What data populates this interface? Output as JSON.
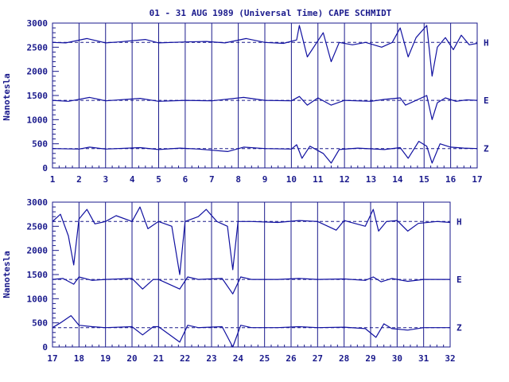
{
  "chart_data": {
    "type": "line",
    "title": "01 - 31 AUG 1989 (Universal Time) CAPE SCHMIDT",
    "ylabel": "Nanotesla",
    "colors": {
      "trace": "#1010a0",
      "frame": "#1a1a8c",
      "reference": "#1a1a8c"
    },
    "grid": "vertical day lines",
    "panels": [
      {
        "xlim": [
          1,
          17
        ],
        "x_ticks": [
          "1",
          "2",
          "3",
          "4",
          "5",
          "6",
          "7",
          "8",
          "9",
          "10",
          "11",
          "12",
          "13",
          "14",
          "15",
          "16",
          "17"
        ],
        "ylim": [
          0,
          3000
        ],
        "y_ticks": [
          "0",
          "500",
          "1000",
          "1500",
          "2000",
          "2500",
          "3000"
        ],
        "series": [
          {
            "name": "H",
            "baseline": 2600,
            "points": [
              [
                1,
                2600
              ],
              [
                1.5,
                2590
              ],
              [
                2.3,
                2680
              ],
              [
                3,
                2590
              ],
              [
                3.5,
                2610
              ],
              [
                4.5,
                2660
              ],
              [
                5,
                2590
              ],
              [
                6,
                2610
              ],
              [
                6.8,
                2620
              ],
              [
                7.5,
                2590
              ],
              [
                8.3,
                2680
              ],
              [
                9,
                2600
              ],
              [
                9.7,
                2580
              ],
              [
                10.2,
                2650
              ],
              [
                10.3,
                2950
              ],
              [
                10.6,
                2300
              ],
              [
                10.9,
                2550
              ],
              [
                11.2,
                2800
              ],
              [
                11.5,
                2200
              ],
              [
                11.8,
                2600
              ],
              [
                12.3,
                2550
              ],
              [
                12.8,
                2600
              ],
              [
                13.4,
                2500
              ],
              [
                13.8,
                2600
              ],
              [
                14.1,
                2900
              ],
              [
                14.4,
                2300
              ],
              [
                14.7,
                2700
              ],
              [
                15.1,
                2950
              ],
              [
                15.3,
                1900
              ],
              [
                15.5,
                2500
              ],
              [
                15.8,
                2700
              ],
              [
                16.1,
                2450
              ],
              [
                16.4,
                2750
              ],
              [
                16.7,
                2550
              ],
              [
                17,
                2580
              ]
            ]
          },
          {
            "name": "E",
            "baseline": 1400,
            "points": [
              [
                1,
                1400
              ],
              [
                1.6,
                1380
              ],
              [
                2.4,
                1460
              ],
              [
                3,
                1390
              ],
              [
                4.3,
                1440
              ],
              [
                5,
                1380
              ],
              [
                6,
                1400
              ],
              [
                7,
                1390
              ],
              [
                8.2,
                1460
              ],
              [
                9,
                1400
              ],
              [
                10,
                1390
              ],
              [
                10.3,
                1480
              ],
              [
                10.6,
                1300
              ],
              [
                11,
                1450
              ],
              [
                11.5,
                1300
              ],
              [
                12,
                1400
              ],
              [
                13,
                1380
              ],
              [
                13.5,
                1420
              ],
              [
                14.1,
                1450
              ],
              [
                14.3,
                1300
              ],
              [
                14.7,
                1400
              ],
              [
                15.1,
                1500
              ],
              [
                15.3,
                1000
              ],
              [
                15.5,
                1350
              ],
              [
                15.8,
                1450
              ],
              [
                16.2,
                1380
              ],
              [
                16.6,
                1410
              ],
              [
                17,
                1400
              ]
            ]
          },
          {
            "name": "Z",
            "baseline": 400,
            "points": [
              [
                1,
                400
              ],
              [
                2,
                390
              ],
              [
                2.4,
                430
              ],
              [
                3,
                390
              ],
              [
                4.3,
                420
              ],
              [
                5,
                380
              ],
              [
                5.8,
                410
              ],
              [
                6.5,
                390
              ],
              [
                7.6,
                340
              ],
              [
                8.2,
                430
              ],
              [
                9,
                400
              ],
              [
                10,
                390
              ],
              [
                10.2,
                480
              ],
              [
                10.4,
                200
              ],
              [
                10.7,
                450
              ],
              [
                11.2,
                300
              ],
              [
                11.5,
                100
              ],
              [
                11.8,
                380
              ],
              [
                12.5,
                410
              ],
              [
                13.5,
                380
              ],
              [
                14.1,
                420
              ],
              [
                14.4,
                200
              ],
              [
                14.8,
                550
              ],
              [
                15.1,
                450
              ],
              [
                15.3,
                100
              ],
              [
                15.6,
                500
              ],
              [
                16,
                430
              ],
              [
                16.5,
                410
              ],
              [
                17,
                400
              ]
            ]
          }
        ]
      },
      {
        "xlim": [
          17,
          32
        ],
        "x_ticks": [
          "17",
          "18",
          "19",
          "20",
          "21",
          "22",
          "23",
          "24",
          "25",
          "26",
          "27",
          "28",
          "29",
          "30",
          "31",
          "32"
        ],
        "ylim": [
          0,
          3000
        ],
        "y_ticks": [
          "0",
          "500",
          "1000",
          "1500",
          "2000",
          "2500",
          "3000"
        ],
        "series": [
          {
            "name": "H",
            "baseline": 2600,
            "points": [
              [
                17,
                2600
              ],
              [
                17.3,
                2750
              ],
              [
                17.6,
                2300
              ],
              [
                17.8,
                1700
              ],
              [
                18,
                2650
              ],
              [
                18.3,
                2850
              ],
              [
                18.6,
                2550
              ],
              [
                19,
                2600
              ],
              [
                19.4,
                2720
              ],
              [
                20,
                2600
              ],
              [
                20.3,
                2900
              ],
              [
                20.6,
                2450
              ],
              [
                21,
                2600
              ],
              [
                21.5,
                2500
              ],
              [
                21.8,
                1500
              ],
              [
                22,
                2600
              ],
              [
                22.5,
                2700
              ],
              [
                22.8,
                2850
              ],
              [
                23.2,
                2600
              ],
              [
                23.6,
                2500
              ],
              [
                23.8,
                1600
              ],
              [
                24,
                2600
              ],
              [
                24.5,
                2600
              ],
              [
                25.5,
                2580
              ],
              [
                26.3,
                2620
              ],
              [
                27,
                2600
              ],
              [
                27.7,
                2420
              ],
              [
                28,
                2620
              ],
              [
                28.8,
                2500
              ],
              [
                29.1,
                2850
              ],
              [
                29.3,
                2400
              ],
              [
                29.6,
                2600
              ],
              [
                30,
                2620
              ],
              [
                30.4,
                2400
              ],
              [
                30.8,
                2560
              ],
              [
                31.5,
                2600
              ],
              [
                32,
                2580
              ]
            ]
          },
          {
            "name": "E",
            "baseline": 1400,
            "points": [
              [
                17,
                1400
              ],
              [
                17.4,
                1420
              ],
              [
                17.8,
                1300
              ],
              [
                18,
                1450
              ],
              [
                18.5,
                1380
              ],
              [
                19,
                1400
              ],
              [
                20,
                1420
              ],
              [
                20.4,
                1200
              ],
              [
                20.8,
                1400
              ],
              [
                21,
                1400
              ],
              [
                21.8,
                1200
              ],
              [
                22.1,
                1450
              ],
              [
                22.5,
                1400
              ],
              [
                23.4,
                1420
              ],
              [
                23.8,
                1100
              ],
              [
                24.1,
                1450
              ],
              [
                24.5,
                1400
              ],
              [
                25.5,
                1400
              ],
              [
                26.3,
                1420
              ],
              [
                27,
                1400
              ],
              [
                28,
                1410
              ],
              [
                28.8,
                1380
              ],
              [
                29.1,
                1450
              ],
              [
                29.4,
                1350
              ],
              [
                29.8,
                1420
              ],
              [
                30.4,
                1360
              ],
              [
                31,
                1400
              ],
              [
                32,
                1400
              ]
            ]
          },
          {
            "name": "Z",
            "baseline": 400,
            "points": [
              [
                17,
                400
              ],
              [
                17.3,
                500
              ],
              [
                17.7,
                650
              ],
              [
                18,
                450
              ],
              [
                18.5,
                420
              ],
              [
                19,
                400
              ],
              [
                20,
                420
              ],
              [
                20.4,
                250
              ],
              [
                20.8,
                420
              ],
              [
                21,
                420
              ],
              [
                21.8,
                100
              ],
              [
                22.1,
                450
              ],
              [
                22.5,
                400
              ],
              [
                23.4,
                420
              ],
              [
                23.8,
                0
              ],
              [
                24.1,
                450
              ],
              [
                24.5,
                400
              ],
              [
                25.5,
                400
              ],
              [
                26.3,
                420
              ],
              [
                27,
                400
              ],
              [
                28,
                410
              ],
              [
                28.8,
                380
              ],
              [
                29.2,
                200
              ],
              [
                29.5,
                480
              ],
              [
                29.8,
                380
              ],
              [
                30.4,
                350
              ],
              [
                31,
                400
              ],
              [
                32,
                400
              ]
            ]
          }
        ]
      }
    ]
  }
}
